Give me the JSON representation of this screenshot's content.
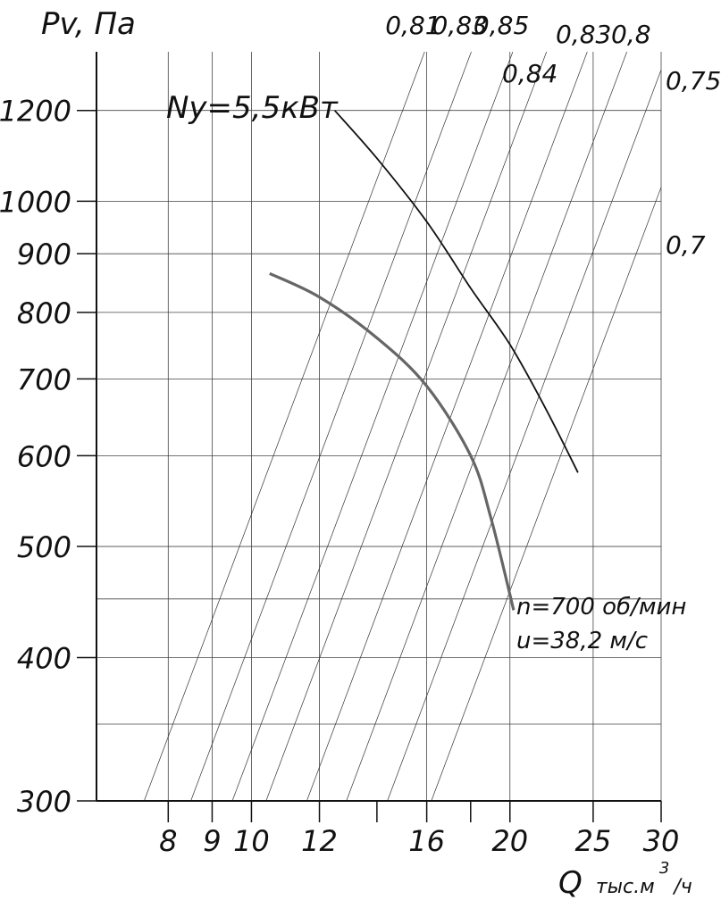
{
  "chart_data": {
    "type": "line",
    "title": "",
    "ylabel": "Pv, Па",
    "xlabel": "Q",
    "xlabel_unit_main": "тыс.м",
    "xlabel_unit_sup": "3",
    "xlabel_unit_tail": "/ч",
    "x_scale": "log",
    "y_scale": "log",
    "xlim": [
      6.6,
      30
    ],
    "ylim": [
      300,
      1350
    ],
    "grid": true,
    "x_gridlines": [
      8,
      9,
      10,
      12,
      16,
      20,
      25,
      30
    ],
    "x_ticks": [
      {
        "value": 8,
        "label": "8"
      },
      {
        "value": 9,
        "label": "9"
      },
      {
        "value": 10,
        "label": "10"
      },
      {
        "value": 12,
        "label": "12"
      },
      {
        "value": 14,
        "label": ""
      },
      {
        "value": 16,
        "label": "16"
      },
      {
        "value": 18,
        "label": ""
      },
      {
        "value": 20,
        "label": "20"
      },
      {
        "value": 25,
        "label": "25"
      },
      {
        "value": 30,
        "label": "30"
      }
    ],
    "y_ticks": [
      {
        "value": 300,
        "label": "300"
      },
      {
        "value": 400,
        "label": "400"
      },
      {
        "value": 500,
        "label": "500"
      },
      {
        "value": 600,
        "label": "600"
      },
      {
        "value": 700,
        "label": "700"
      },
      {
        "value": 800,
        "label": "800"
      },
      {
        "value": 900,
        "label": "900"
      },
      {
        "value": 1000,
        "label": "1000"
      },
      {
        "value": 1200,
        "label": "1200"
      }
    ],
    "y_gridlines": [
      350,
      400,
      450,
      500,
      600,
      700,
      800,
      900,
      1000,
      1200
    ],
    "efficiency_lines": [
      {
        "label": "0,81",
        "q_at_300": 7.5
      },
      {
        "label": "0,83",
        "q_at_300": 8.5
      },
      {
        "label": "0,85",
        "q_at_300": 9.5
      },
      {
        "label": "0,84",
        "q_at_300": 10.4
      },
      {
        "label": "0,83",
        "q_at_300": 11.6
      },
      {
        "label": "0,8",
        "q_at_300": 12.9
      },
      {
        "label": "0,75",
        "q_at_300": 14.4
      },
      {
        "label": "0,7",
        "q_at_300": 16.2
      }
    ],
    "series": [
      {
        "name": "",
        "stroke": "#666666",
        "points": [
          [
            10.5,
            865
          ],
          [
            12,
            825
          ],
          [
            14,
            760
          ],
          [
            16,
            690
          ],
          [
            18,
            600
          ],
          [
            19,
            530
          ],
          [
            20.2,
            440
          ]
        ]
      },
      {
        "name": "Ny=5,5кВт",
        "stroke": "#111111",
        "points": [
          [
            12.5,
            1200
          ],
          [
            14,
            1090
          ],
          [
            16,
            960
          ],
          [
            18,
            840
          ],
          [
            20,
            750
          ],
          [
            22,
            660
          ],
          [
            24,
            580
          ]
        ]
      }
    ],
    "annotations": [
      {
        "text": "Ny=5,5кВт"
      },
      {
        "text": "n=700 об/мин"
      },
      {
        "text": "u=38,2 м/с"
      }
    ]
  }
}
